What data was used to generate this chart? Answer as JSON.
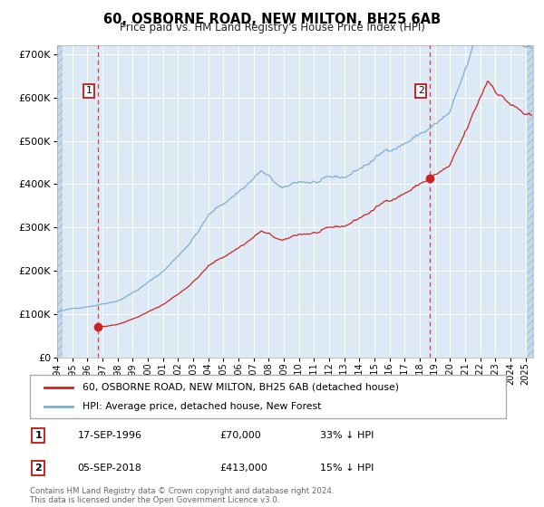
{
  "title": "60, OSBORNE ROAD, NEW MILTON, BH25 6AB",
  "subtitle": "Price paid vs. HM Land Registry's House Price Index (HPI)",
  "sale1_date": 1996.72,
  "sale1_price": 70000,
  "sale2_date": 2018.68,
  "sale2_price": 413000,
  "price_line_color": "#cc2222",
  "hpi_line_color": "#7bafd4",
  "vline_color": "#cc2222",
  "background_color": "#ddeaf5",
  "ylim": [
    0,
    720000
  ],
  "xlim_start": 1994.0,
  "xlim_end": 2025.5,
  "yticks": [
    0,
    100000,
    200000,
    300000,
    400000,
    500000,
    600000,
    700000
  ],
  "legend_label1": "60, OSBORNE ROAD, NEW MILTON, BH25 6AB (detached house)",
  "legend_label2": "HPI: Average price, detached house, New Forest",
  "annotation1_date": "17-SEP-1996",
  "annotation1_price": "£70,000",
  "annotation1_hpi": "33% ↓ HPI",
  "annotation2_date": "05-SEP-2018",
  "annotation2_price": "£413,000",
  "annotation2_hpi": "15% ↓ HPI",
  "footer": "Contains HM Land Registry data © Crown copyright and database right 2024.\nThis data is licensed under the Open Government Licence v3.0."
}
